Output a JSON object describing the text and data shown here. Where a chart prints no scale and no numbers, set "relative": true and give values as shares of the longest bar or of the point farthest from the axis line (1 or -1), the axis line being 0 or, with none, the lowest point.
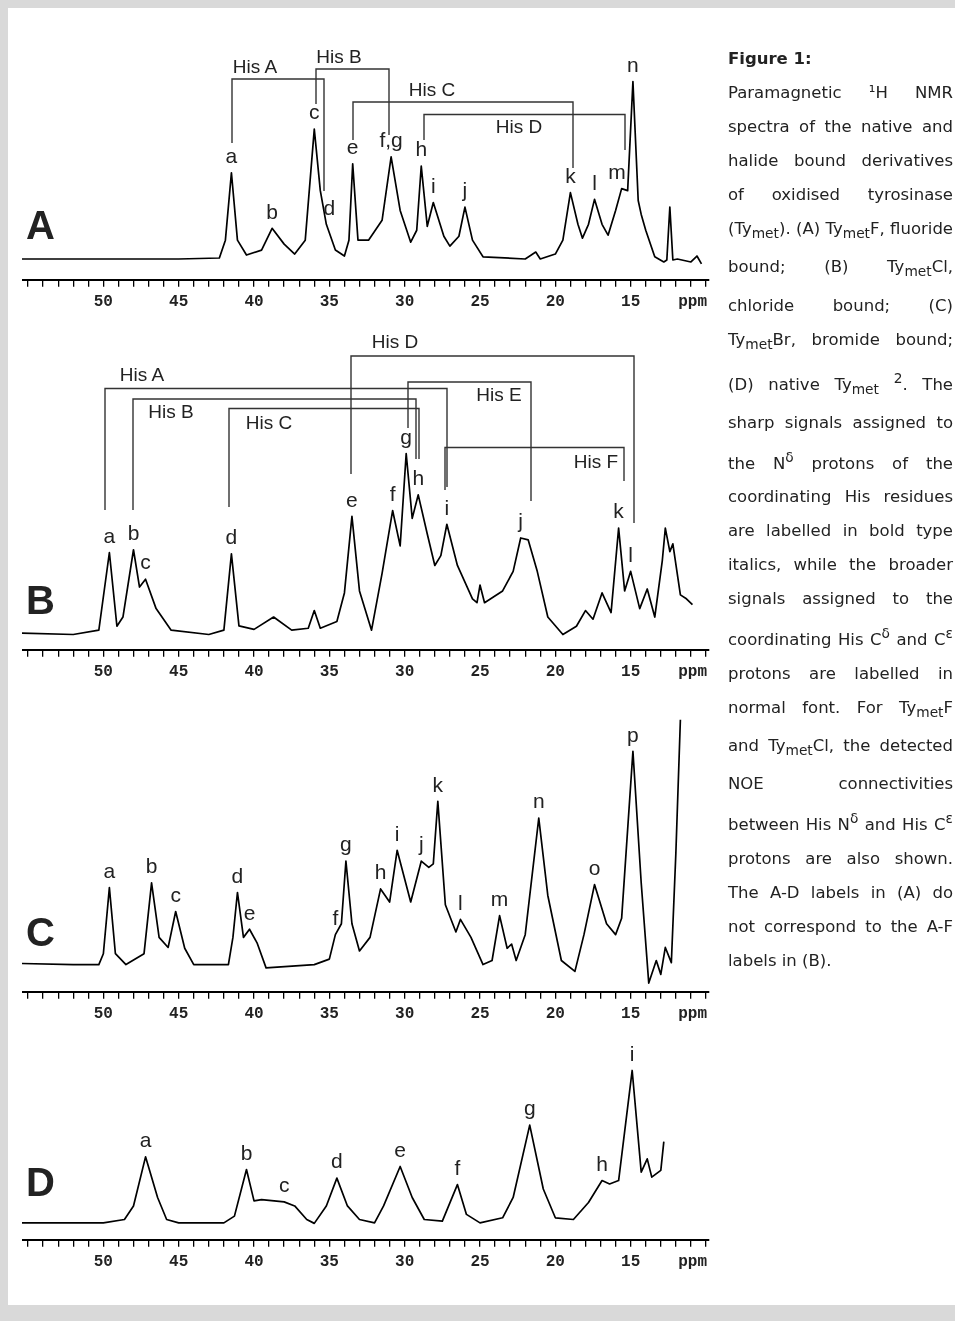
{
  "chart_data": [
    {
      "type": "line",
      "title": "A",
      "xlabel": "ppm",
      "relative": true,
      "color": "#000000",
      "xlim": [
        55.4,
        9.8
      ],
      "xticks": [
        {
          "value": 55,
          "label": null
        },
        {
          "value": 54,
          "label": null
        },
        {
          "value": 53,
          "label": null
        },
        {
          "value": 52,
          "label": null
        },
        {
          "value": 51,
          "label": null
        },
        50,
        {
          "value": 49,
          "label": null
        },
        {
          "value": 48,
          "label": null
        },
        {
          "value": 47,
          "label": null
        },
        {
          "value": 46,
          "label": null
        },
        45,
        {
          "value": 44,
          "label": null
        },
        {
          "value": 43,
          "label": null
        },
        {
          "value": 42,
          "label": null
        },
        {
          "value": 41,
          "label": null
        },
        40,
        {
          "value": 39,
          "label": null
        },
        {
          "value": 38,
          "label": null
        },
        {
          "value": 37,
          "label": null
        },
        {
          "value": 36,
          "label": null
        },
        35,
        {
          "value": 34,
          "label": null
        },
        {
          "value": 33,
          "label": null
        },
        {
          "value": 32,
          "label": null
        },
        {
          "value": 31,
          "label": null
        },
        30,
        {
          "value": 29,
          "label": null
        },
        {
          "value": 28,
          "label": null
        },
        {
          "value": 27,
          "label": null
        },
        {
          "value": 26,
          "label": null
        },
        25,
        {
          "value": 24,
          "label": null
        },
        {
          "value": 23,
          "label": null
        },
        {
          "value": 22,
          "label": null
        },
        {
          "value": 21,
          "label": null
        },
        20,
        {
          "value": 19,
          "label": null
        },
        {
          "value": 18,
          "label": null
        },
        {
          "value": 17,
          "label": null
        },
        {
          "value": 16,
          "label": null
        },
        15,
        {
          "value": 14,
          "label": null
        },
        {
          "value": 13,
          "label": null
        },
        {
          "value": 12,
          "label": null
        },
        {
          "value": 11,
          "label": null
        },
        {
          "value": 10,
          "label": null
        }
      ],
      "x": [
        55.4,
        50,
        45,
        42.3,
        41.9,
        41.5,
        41.1,
        40.5,
        39.5,
        38.8,
        38.0,
        37.3,
        36.6,
        36.0,
        35.6,
        35.2,
        34.6,
        34.0,
        33.7,
        33.45,
        33.1,
        32.4,
        31.5,
        30.9,
        30.3,
        29.6,
        29.2,
        28.9,
        28.5,
        28.1,
        27.4,
        27.0,
        26.4,
        26.0,
        25.5,
        24.8,
        22,
        21.3,
        21.0,
        20,
        19.5,
        19.0,
        18.5,
        18.2,
        17.8,
        17.4,
        16.9,
        16.5,
        16.0,
        15.6,
        15.2,
        14.85,
        14.5,
        14.3,
        14.0,
        13.4,
        12.8,
        12.6,
        12.4,
        12.2,
        11.9,
        11,
        10.6,
        10.3
      ],
      "values": [
        0.105,
        0.105,
        0.105,
        0.11,
        0.2,
        0.54,
        0.2,
        0.125,
        0.15,
        0.26,
        0.18,
        0.13,
        0.2,
        0.76,
        0.45,
        0.28,
        0.15,
        0.12,
        0.2,
        0.585,
        0.2,
        0.2,
        0.3,
        0.62,
        0.35,
        0.19,
        0.25,
        0.574,
        0.27,
        0.39,
        0.22,
        0.17,
        0.22,
        0.367,
        0.2,
        0.116,
        0.105,
        0.14,
        0.105,
        0.13,
        0.2,
        0.44,
        0.28,
        0.21,
        0.28,
        0.406,
        0.28,
        0.225,
        0.35,
        0.46,
        0.45,
        1.0,
        0.4,
        0.33,
        0.25,
        0.116,
        0.09,
        0.1,
        0.367,
        0.1,
        0.105,
        0.09,
        0.12,
        0.08
      ],
      "annotations": [
        {
          "text": "a",
          "x": 41.5,
          "y": 0.54
        },
        {
          "text": "b",
          "x": 38.8,
          "y": 0.26
        },
        {
          "text": "c",
          "x": 36.0,
          "y": 0.76
        },
        {
          "text": "d",
          "x": 35.0,
          "y": 0.28
        },
        {
          "text": "e",
          "x": 33.45,
          "y": 0.585
        },
        {
          "text": "f,g",
          "x": 30.9,
          "y": 0.62
        },
        {
          "text": "h",
          "x": 28.9,
          "y": 0.574
        },
        {
          "text": "i",
          "x": 28.1,
          "y": 0.39
        },
        {
          "text": "j",
          "x": 26.0,
          "y": 0.367
        },
        {
          "text": "k",
          "x": 19.0,
          "y": 0.44
        },
        {
          "text": "l",
          "x": 17.4,
          "y": 0.406
        },
        {
          "text": "m",
          "x": 15.9,
          "y": 0.46
        },
        {
          "text": "n",
          "x": 14.85,
          "y": 1.0
        },
        "His A",
        "His B",
        "His C",
        "His D"
      ]
    },
    {
      "type": "line",
      "title": "B",
      "xlabel": "ppm",
      "relative": true,
      "color": "#000000",
      "xlim": [
        55.4,
        9.8
      ],
      "xticks": [
        {
          "value": 55,
          "label": null
        },
        {
          "value": 54,
          "label": null
        },
        {
          "value": 53,
          "label": null
        },
        {
          "value": 52,
          "label": null
        },
        {
          "value": 51,
          "label": null
        },
        50,
        {
          "value": 49,
          "label": null
        },
        {
          "value": 48,
          "label": null
        },
        {
          "value": 47,
          "label": null
        },
        {
          "value": 46,
          "label": null
        },
        45,
        {
          "value": 44,
          "label": null
        },
        {
          "value": 43,
          "label": null
        },
        {
          "value": 42,
          "label": null
        },
        {
          "value": 41,
          "label": null
        },
        40,
        {
          "value": 39,
          "label": null
        },
        {
          "value": 38,
          "label": null
        },
        {
          "value": 37,
          "label": null
        },
        {
          "value": 36,
          "label": null
        },
        35,
        {
          "value": 34,
          "label": null
        },
        {
          "value": 33,
          "label": null
        },
        {
          "value": 32,
          "label": null
        },
        {
          "value": 31,
          "label": null
        },
        30,
        {
          "value": 29,
          "label": null
        },
        {
          "value": 28,
          "label": null
        },
        {
          "value": 27,
          "label": null
        },
        {
          "value": 26,
          "label": null
        },
        25,
        {
          "value": 24,
          "label": null
        },
        {
          "value": 23,
          "label": null
        },
        {
          "value": 22,
          "label": null
        },
        {
          "value": 21,
          "label": null
        },
        20,
        {
          "value": 19,
          "label": null
        },
        {
          "value": 18,
          "label": null
        },
        {
          "value": 17,
          "label": null
        },
        {
          "value": 16,
          "label": null
        },
        15,
        {
          "value": 14,
          "label": null
        },
        {
          "value": 13,
          "label": null
        },
        {
          "value": 12,
          "label": null
        },
        {
          "value": 11,
          "label": null
        },
        {
          "value": 10,
          "label": null
        }
      ],
      "x": [
        55.4,
        52,
        50.3,
        49.6,
        49.1,
        48.7,
        48.0,
        47.6,
        47.2,
        46.5,
        45.5,
        43,
        42,
        41.5,
        41.0,
        40,
        38.7,
        37.5,
        36.4,
        36.0,
        35.6,
        34.5,
        34.0,
        33.5,
        33.0,
        32.2,
        31.5,
        30.8,
        30.3,
        29.9,
        29.5,
        29.1,
        28.5,
        28,
        27.6,
        27.2,
        26.5,
        25.5,
        25.2,
        25.0,
        24.7,
        23.5,
        22.8,
        22.3,
        21.8,
        21.2,
        20.5,
        19.5,
        18.6,
        18.0,
        17.5,
        16.9,
        16.3,
        15.8,
        15.4,
        15.0,
        14.4,
        13.9,
        13.4,
        12.9,
        12.7,
        12.4,
        12.2,
        11.7,
        11.3,
        10.9
      ],
      "values": [
        0.085,
        0.078,
        0.1,
        0.496,
        0.12,
        0.167,
        0.51,
        0.32,
        0.36,
        0.21,
        0.1,
        0.078,
        0.1,
        0.489,
        0.122,
        0.104,
        0.167,
        0.1,
        0.11,
        0.2,
        0.11,
        0.144,
        0.29,
        0.68,
        0.3,
        0.1,
        0.39,
        0.71,
        0.53,
        1.0,
        0.67,
        0.79,
        0.59,
        0.43,
        0.48,
        0.64,
        0.43,
        0.26,
        0.24,
        0.33,
        0.24,
        0.3,
        0.4,
        0.57,
        0.56,
        0.4,
        0.167,
        0.078,
        0.12,
        0.2,
        0.156,
        0.29,
        0.19,
        0.62,
        0.3,
        0.4,
        0.21,
        0.31,
        0.167,
        0.455,
        0.62,
        0.5,
        0.54,
        0.28,
        0.26,
        0.23
      ],
      "annotations": [
        {
          "text": "a",
          "x": 49.6,
          "y": 0.496
        },
        {
          "text": "b",
          "x": 48.0,
          "y": 0.51
        },
        {
          "text": "c",
          "x": 47.2,
          "y": 0.36
        },
        {
          "text": "d",
          "x": 41.5,
          "y": 0.489
        },
        {
          "text": "e",
          "x": 33.5,
          "y": 0.68
        },
        {
          "text": "f",
          "x": 30.8,
          "y": 0.71
        },
        {
          "text": "g",
          "x": 29.9,
          "y": 1.0
        },
        {
          "text": "h",
          "x": 29.1,
          "y": 0.79
        },
        {
          "text": "i",
          "x": 27.2,
          "y": 0.64
        },
        {
          "text": "j",
          "x": 22.3,
          "y": 0.57
        },
        {
          "text": "k",
          "x": 15.8,
          "y": 0.62
        },
        {
          "text": "l",
          "x": 15.0,
          "y": 0.4
        },
        "His D",
        "His A",
        "His E",
        "His B",
        "His C",
        "His F"
      ]
    },
    {
      "type": "line",
      "title": "C",
      "xlabel": "ppm",
      "relative": true,
      "color": "#000000",
      "xlim": [
        55.4,
        9.8
      ],
      "xticks": [
        {
          "value": 55,
          "label": null
        },
        {
          "value": 54,
          "label": null
        },
        {
          "value": 53,
          "label": null
        },
        {
          "value": 52,
          "label": null
        },
        {
          "value": 51,
          "label": null
        },
        50,
        {
          "value": 49,
          "label": null
        },
        {
          "value": 48,
          "label": null
        },
        {
          "value": 47,
          "label": null
        },
        {
          "value": 46,
          "label": null
        },
        45,
        {
          "value": 44,
          "label": null
        },
        {
          "value": 43,
          "label": null
        },
        {
          "value": 42,
          "label": null
        },
        {
          "value": 41,
          "label": null
        },
        40,
        {
          "value": 39,
          "label": null
        },
        {
          "value": 38,
          "label": null
        },
        {
          "value": 37,
          "label": null
        },
        {
          "value": 36,
          "label": null
        },
        35,
        {
          "value": 34,
          "label": null
        },
        {
          "value": 33,
          "label": null
        },
        {
          "value": 32,
          "label": null
        },
        {
          "value": 31,
          "label": null
        },
        30,
        {
          "value": 29,
          "label": null
        },
        {
          "value": 28,
          "label": null
        },
        {
          "value": 27,
          "label": null
        },
        {
          "value": 26,
          "label": null
        },
        25,
        {
          "value": 24,
          "label": null
        },
        {
          "value": 23,
          "label": null
        },
        {
          "value": 22,
          "label": null
        },
        {
          "value": 21,
          "label": null
        },
        20,
        {
          "value": 19,
          "label": null
        },
        {
          "value": 18,
          "label": null
        },
        {
          "value": 17,
          "label": null
        },
        {
          "value": 16,
          "label": null
        },
        15,
        {
          "value": 14,
          "label": null
        },
        {
          "value": 13,
          "label": null
        },
        {
          "value": 12,
          "label": null
        },
        {
          "value": 11,
          "label": null
        },
        {
          "value": 10,
          "label": null
        }
      ],
      "x": [
        55.4,
        52,
        50.3,
        50,
        49.6,
        49.2,
        48.5,
        47.3,
        46.8,
        46.3,
        45.7,
        45.2,
        44.6,
        44,
        41.7,
        41.4,
        41.1,
        40.7,
        40.3,
        39.8,
        39.2,
        36,
        35.0,
        34.6,
        34.2,
        33.9,
        33.5,
        33.0,
        32.3,
        31.6,
        31.0,
        30.5,
        29.6,
        28.9,
        28.4,
        28.1,
        27.8,
        27.3,
        26.6,
        26.3,
        25.6,
        24.8,
        24.2,
        23.7,
        23.2,
        22.9,
        22.6,
        22.0,
        21.1,
        20.5,
        19.6,
        18.7,
        18.1,
        17.4,
        16.6,
        16.0,
        15.6,
        14.85,
        14.3,
        13.8,
        13.3,
        13.0,
        12.7,
        12.3,
        12.0,
        11.7
      ],
      "values": [
        0.104,
        0.1,
        0.1,
        0.14,
        0.383,
        0.14,
        0.1,
        0.14,
        0.4,
        0.2,
        0.163,
        0.295,
        0.16,
        0.1,
        0.1,
        0.2,
        0.365,
        0.2,
        0.23,
        0.18,
        0.088,
        0.1,
        0.12,
        0.21,
        0.25,
        0.48,
        0.25,
        0.15,
        0.2,
        0.378,
        0.33,
        0.52,
        0.33,
        0.48,
        0.457,
        0.47,
        0.7,
        0.32,
        0.22,
        0.266,
        0.2,
        0.1,
        0.115,
        0.28,
        0.16,
        0.175,
        0.115,
        0.21,
        0.638,
        0.354,
        0.115,
        0.075,
        0.21,
        0.394,
        0.25,
        0.21,
        0.27,
        0.884,
        0.4,
        0.032,
        0.115,
        0.064,
        0.163,
        0.107,
        0.51,
        1.0
      ],
      "annotations": [
        {
          "text": "a",
          "x": 49.6,
          "y": 0.383
        },
        {
          "text": "b",
          "x": 46.8,
          "y": 0.4
        },
        {
          "text": "c",
          "x": 45.2,
          "y": 0.295
        },
        {
          "text": "d",
          "x": 41.1,
          "y": 0.365
        },
        {
          "text": "e",
          "x": 40.3,
          "y": 0.23
        },
        {
          "text": "f",
          "x": 34.6,
          "y": 0.21
        },
        {
          "text": "g",
          "x": 33.9,
          "y": 0.48
        },
        {
          "text": "h",
          "x": 31.6,
          "y": 0.378
        },
        {
          "text": "i",
          "x": 30.5,
          "y": 0.52
        },
        {
          "text": "j",
          "x": 28.9,
          "y": 0.48
        },
        {
          "text": "k",
          "x": 27.8,
          "y": 0.7
        },
        {
          "text": "l",
          "x": 26.3,
          "y": 0.266
        },
        {
          "text": "m",
          "x": 23.7,
          "y": 0.28
        },
        {
          "text": "n",
          "x": 21.1,
          "y": 0.638
        },
        {
          "text": "o",
          "x": 17.4,
          "y": 0.394
        },
        {
          "text": "p",
          "x": 14.85,
          "y": 0.884
        }
      ]
    },
    {
      "type": "line",
      "title": "D",
      "xlabel": "ppm",
      "relative": true,
      "color": "#000000",
      "xlim": [
        55.4,
        9.8
      ],
      "xticks": [
        {
          "value": 55,
          "label": null
        },
        {
          "value": 54,
          "label": null
        },
        {
          "value": 53,
          "label": null
        },
        {
          "value": 52,
          "label": null
        },
        {
          "value": 51,
          "label": null
        },
        50,
        {
          "value": 49,
          "label": null
        },
        {
          "value": 48,
          "label": null
        },
        {
          "value": 47,
          "label": null
        },
        {
          "value": 46,
          "label": null
        },
        45,
        {
          "value": 44,
          "label": null
        },
        {
          "value": 43,
          "label": null
        },
        {
          "value": 42,
          "label": null
        },
        {
          "value": 41,
          "label": null
        },
        40,
        {
          "value": 39,
          "label": null
        },
        {
          "value": 38,
          "label": null
        },
        {
          "value": 37,
          "label": null
        },
        {
          "value": 36,
          "label": null
        },
        35,
        {
          "value": 34,
          "label": null
        },
        {
          "value": 33,
          "label": null
        },
        {
          "value": 32,
          "label": null
        },
        {
          "value": 31,
          "label": null
        },
        30,
        {
          "value": 29,
          "label": null
        },
        {
          "value": 28,
          "label": null
        },
        {
          "value": 27,
          "label": null
        },
        {
          "value": 26,
          "label": null
        },
        25,
        {
          "value": 24,
          "label": null
        },
        {
          "value": 23,
          "label": null
        },
        {
          "value": 22,
          "label": null
        },
        {
          "value": 21,
          "label": null
        },
        20,
        {
          "value": 19,
          "label": null
        },
        {
          "value": 18,
          "label": null
        },
        {
          "value": 17,
          "label": null
        },
        {
          "value": 16,
          "label": null
        },
        15,
        {
          "value": 14,
          "label": null
        },
        {
          "value": 13,
          "label": null
        },
        {
          "value": 12,
          "label": null
        },
        {
          "value": 11,
          "label": null
        },
        {
          "value": 10,
          "label": null
        }
      ],
      "x": [
        55.4,
        50,
        48.6,
        48.0,
        47.2,
        46.4,
        45.8,
        45,
        42,
        41.3,
        40.5,
        40.0,
        39.5,
        38,
        37.3,
        36.5,
        36.0,
        35.2,
        34.5,
        33.8,
        33.0,
        32,
        31.4,
        30.3,
        29.5,
        28.7,
        27.5,
        26.5,
        25.9,
        25,
        23.5,
        22.8,
        21.7,
        20.8,
        20,
        18.8,
        17.8,
        16.9,
        16.4,
        15.8,
        14.9,
        14.3,
        13.9,
        13.6,
        13.0,
        12.8
      ],
      "values": [
        0.1,
        0.1,
        0.12,
        0.2,
        0.49,
        0.25,
        0.12,
        0.1,
        0.1,
        0.14,
        0.415,
        0.23,
        0.237,
        0.224,
        0.2,
        0.12,
        0.097,
        0.2,
        0.364,
        0.2,
        0.12,
        0.1,
        0.2,
        0.433,
        0.25,
        0.12,
        0.11,
        0.326,
        0.15,
        0.1,
        0.13,
        0.25,
        0.677,
        0.3,
        0.13,
        0.12,
        0.22,
        0.35,
        0.33,
        0.35,
        1.0,
        0.4,
        0.478,
        0.37,
        0.41,
        0.58
      ],
      "annotations": [
        {
          "text": "a",
          "x": 47.2,
          "y": 0.49
        },
        {
          "text": "b",
          "x": 40.5,
          "y": 0.415
        },
        {
          "text": "c",
          "x": 38.0,
          "y": 0.224
        },
        {
          "text": "d",
          "x": 34.5,
          "y": 0.364
        },
        {
          "text": "e",
          "x": 30.3,
          "y": 0.433
        },
        {
          "text": "f",
          "x": 26.5,
          "y": 0.326
        },
        {
          "text": "g",
          "x": 21.7,
          "y": 0.677
        },
        {
          "text": "h",
          "x": 16.9,
          "y": 0.35
        },
        {
          "text": "i",
          "x": 14.9,
          "y": 1.0
        }
      ]
    },
    {
      "type": "other",
      "title": "Figure 1:",
      "annotations": [
        "Paramagnetic ¹H NMR spectra of the native and halide bound derivatives of oxidised tyrosinase (Ty$_{met}$). (A) Ty$_{met}$F, fluoride bound; (B) Ty$_{met}$Cl, chloride bound; (C) Ty$_{met}$Br, bromide bound; (D) native Ty$_{met}$ $^{2}$. The sharp signals assigned to the N$^{δ}$ protons of the coordinating His residues are labelled in bold type italics, while the broader signals assigned to the coordinating His C$^{δ}$ and C$^{ε}$ protons are labelled in normal font. For Ty$_{met}$F and Ty$_{met}$Cl, the detected NOE connectivities between His N$^{δ}$ and His C$^{ε}$ protons are also shown. The A-D labels in (A) do not correspond to the A-F labels in (B)."
      ]
    }
  ]
}
